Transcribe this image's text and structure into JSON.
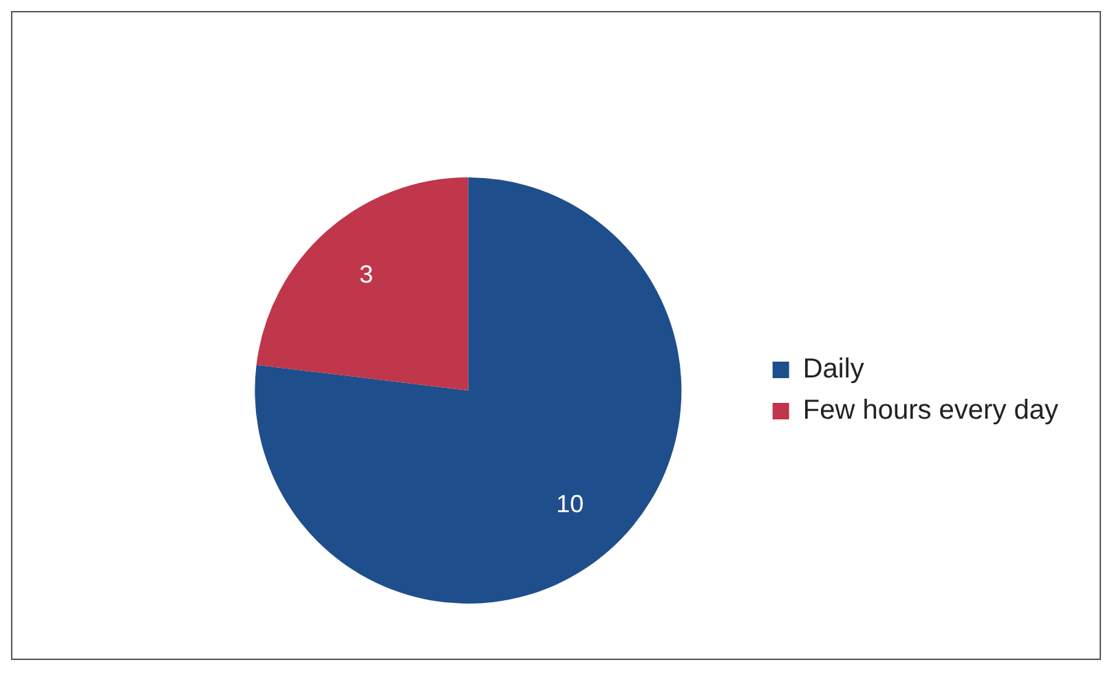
{
  "chart_data": {
    "type": "pie",
    "categories": [
      "Daily",
      "Few hours every day"
    ],
    "values": [
      10,
      3
    ],
    "colors": [
      "#1f4e8c",
      "#c0364a"
    ],
    "data_labels": true,
    "legend": "right"
  }
}
